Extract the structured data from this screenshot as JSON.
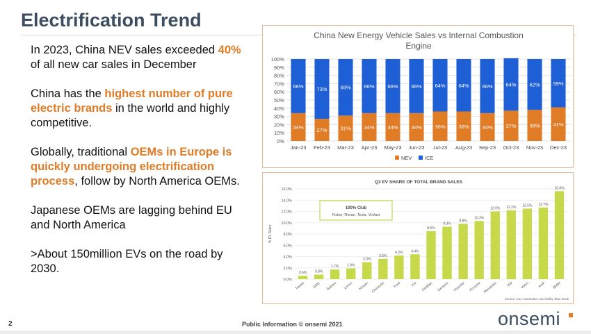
{
  "slide": {
    "title": "Electrification Trend",
    "page_number": "2",
    "footer": "Public Information   © onsemi 2021",
    "logo_text": "onsemi"
  },
  "bullets": [
    {
      "parts": [
        {
          "t": "In 2023, China NEV sales exceeded ",
          "hl": false
        },
        {
          "t": "40%",
          "hl": true
        },
        {
          "t": " of all new car sales in December",
          "hl": false
        }
      ]
    },
    {
      "parts": [
        {
          "t": "China has the ",
          "hl": false
        },
        {
          "t": "highest number of pure electric brands",
          "hl": true
        },
        {
          "t": " in the world and highly competitive.",
          "hl": false
        }
      ]
    },
    {
      "parts": [
        {
          "t": "Globally, traditional ",
          "hl": false
        },
        {
          "t": "OEMs in Europe is quickly undergoing electrification process",
          "hl": true
        },
        {
          "t": ", follow by North America OEMs.",
          "hl": false
        }
      ]
    },
    {
      "parts": [
        {
          "t": "Japanese OEMs are lagging behind EU and North America",
          "hl": false
        }
      ]
    },
    {
      "parts": [
        {
          "t": ">About 150million EVs on the road by 2030.",
          "hl": false
        }
      ]
    }
  ],
  "colors": {
    "nev": "#e07b26",
    "ice": "#1f5fd6",
    "bar2": "#c7d94a",
    "accent": "#e07b26",
    "title": "#3b4d5e"
  },
  "chart_data": [
    {
      "type": "bar",
      "stacked": true,
      "title": "China New Energy Vehicle Sales vs Internal Combustion Engine",
      "title_lines": [
        "China New Energy Vehicle Sales vs Internal Combustion",
        "Engine"
      ],
      "categories": [
        "Jan-23",
        "Feb-23",
        "Mar-23",
        "Apr-23",
        "May-23",
        "Jun-23",
        "Jul-23",
        "Aug-23",
        "Sep-23",
        "Oct-23",
        "Nov-23",
        "Dec-23"
      ],
      "series": [
        {
          "name": "NEV",
          "values": [
            34,
            27,
            31,
            34,
            34,
            34,
            36,
            36,
            34,
            37,
            38,
            41
          ]
        },
        {
          "name": "ICE",
          "values": [
            66,
            73,
            69,
            66,
            66,
            66,
            64,
            64,
            66,
            64,
            62,
            59
          ]
        }
      ],
      "yticks": [
        "0%",
        "10%",
        "20%",
        "30%",
        "40%",
        "50%",
        "60%",
        "70%",
        "80%",
        "90%",
        "100%"
      ],
      "ylim": [
        0,
        100
      ],
      "legend_position": "bottom"
    },
    {
      "type": "bar",
      "title": "Q3 EV SHARE OF TOTAL BRAND SALES",
      "ylabel": "% EV Sales",
      "categories": [
        "Toyota",
        "GMC",
        "Subaru",
        "Lexus",
        "Nissan",
        "Chevrolet",
        "Ford",
        "Kia",
        "Cadillac",
        "Genesis",
        "Hyundai",
        "Porsche",
        "Mercedes",
        "VW",
        "Volvo",
        "Audi",
        "BMW"
      ],
      "values": [
        0.6,
        0.8,
        1.7,
        1.9,
        3.0,
        3.6,
        4.2,
        4.4,
        8.5,
        9.3,
        9.8,
        10.3,
        12.0,
        12.2,
        12.5,
        12.7,
        15.6
      ],
      "value_labels": [
        "0.6%",
        "0.8%",
        "1.7%",
        "1.9%",
        "3.0%",
        "3.6%",
        "4.2%",
        "4.4%",
        "8.5%",
        "9.3%",
        "9.8%",
        "10.3%",
        "12.0%",
        "12.2%",
        "12.5%",
        "12.7%",
        "15.6%"
      ],
      "yticks": [
        "0.0%",
        "2.0%",
        "4.0%",
        "6.0%",
        "8.0%",
        "10.0%",
        "12.0%",
        "14.0%",
        "16.0%"
      ],
      "ylim": [
        0,
        16
      ],
      "annotation_title": "100% Club",
      "annotation_body": "Fisker, Rivian, Tesla, Vinfast",
      "source": "Source: Cox Automotive and Kelley Blue Book"
    }
  ]
}
